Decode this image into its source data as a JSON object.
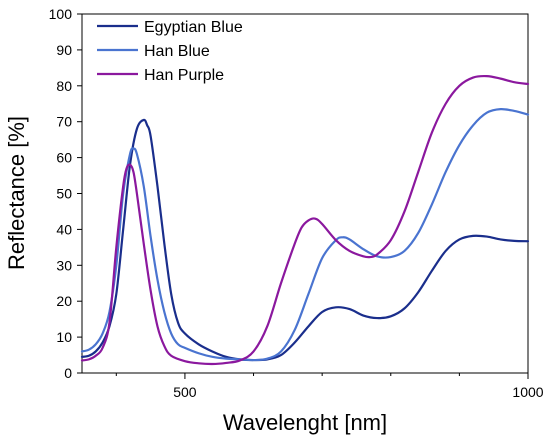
{
  "chart_data": {
    "type": "line",
    "title": "",
    "xlabel": "Wavelenght [nm]",
    "ylabel": "Reflectance [%]",
    "xlim": [
      350,
      1000
    ],
    "ylim": [
      0,
      100
    ],
    "x_ticks": [
      500,
      1000
    ],
    "x_minor_ticks": [
      400,
      600,
      700,
      800,
      900
    ],
    "y_ticks": [
      0,
      10,
      20,
      30,
      40,
      50,
      60,
      70,
      80,
      90,
      100
    ],
    "grid": false,
    "legend_position": "top-left",
    "series": [
      {
        "name": "Egyptian Blue",
        "color": "#1a2e8c",
        "points": [
          [
            350,
            4.5
          ],
          [
            360,
            4.8
          ],
          [
            370,
            6
          ],
          [
            380,
            8.5
          ],
          [
            390,
            13
          ],
          [
            400,
            22
          ],
          [
            410,
            40
          ],
          [
            420,
            58
          ],
          [
            430,
            68
          ],
          [
            440,
            70.5
          ],
          [
            445,
            69
          ],
          [
            450,
            66
          ],
          [
            460,
            52
          ],
          [
            470,
            36
          ],
          [
            480,
            22
          ],
          [
            490,
            14
          ],
          [
            500,
            11
          ],
          [
            520,
            8
          ],
          [
            540,
            6
          ],
          [
            560,
            4.5
          ],
          [
            580,
            3.8
          ],
          [
            600,
            3.6
          ],
          [
            620,
            3.8
          ],
          [
            640,
            5
          ],
          [
            660,
            8.5
          ],
          [
            680,
            13
          ],
          [
            700,
            17
          ],
          [
            720,
            18.3
          ],
          [
            740,
            17.8
          ],
          [
            760,
            16
          ],
          [
            780,
            15.3
          ],
          [
            800,
            15.8
          ],
          [
            820,
            18
          ],
          [
            840,
            22.5
          ],
          [
            860,
            28.5
          ],
          [
            880,
            34
          ],
          [
            900,
            37.2
          ],
          [
            920,
            38.2
          ],
          [
            940,
            38
          ],
          [
            960,
            37.2
          ],
          [
            980,
            36.8
          ],
          [
            1000,
            36.7
          ]
        ]
      },
      {
        "name": "Han Blue",
        "color": "#4a74d0",
        "points": [
          [
            350,
            6
          ],
          [
            360,
            6.5
          ],
          [
            370,
            8
          ],
          [
            380,
            11
          ],
          [
            390,
            17
          ],
          [
            400,
            30
          ],
          [
            410,
            50
          ],
          [
            420,
            61
          ],
          [
            425,
            62.5
          ],
          [
            430,
            61
          ],
          [
            440,
            52
          ],
          [
            450,
            38
          ],
          [
            460,
            26
          ],
          [
            470,
            17
          ],
          [
            480,
            11
          ],
          [
            490,
            8
          ],
          [
            500,
            7
          ],
          [
            520,
            5.5
          ],
          [
            540,
            4.5
          ],
          [
            560,
            4
          ],
          [
            580,
            3.8
          ],
          [
            600,
            3.6
          ],
          [
            620,
            4
          ],
          [
            640,
            6
          ],
          [
            660,
            12
          ],
          [
            680,
            22
          ],
          [
            700,
            32
          ],
          [
            720,
            37
          ],
          [
            730,
            37.8
          ],
          [
            740,
            37.2
          ],
          [
            760,
            34.5
          ],
          [
            780,
            32.5
          ],
          [
            800,
            32.3
          ],
          [
            820,
            34
          ],
          [
            840,
            39
          ],
          [
            860,
            47
          ],
          [
            880,
            56
          ],
          [
            900,
            63.5
          ],
          [
            920,
            69
          ],
          [
            940,
            72.5
          ],
          [
            960,
            73.5
          ],
          [
            980,
            73
          ],
          [
            1000,
            72
          ]
        ]
      },
      {
        "name": "Han Purple",
        "color": "#8b189e",
        "points": [
          [
            350,
            3.5
          ],
          [
            360,
            3.8
          ],
          [
            370,
            4.8
          ],
          [
            380,
            7
          ],
          [
            390,
            14
          ],
          [
            400,
            35
          ],
          [
            410,
            52
          ],
          [
            415,
            57
          ],
          [
            420,
            58
          ],
          [
            425,
            56
          ],
          [
            430,
            50
          ],
          [
            440,
            36
          ],
          [
            450,
            23
          ],
          [
            460,
            13
          ],
          [
            470,
            7.5
          ],
          [
            480,
            4.8
          ],
          [
            500,
            3.3
          ],
          [
            520,
            2.7
          ],
          [
            540,
            2.5
          ],
          [
            560,
            2.8
          ],
          [
            580,
            3.5
          ],
          [
            600,
            6
          ],
          [
            620,
            13
          ],
          [
            640,
            25
          ],
          [
            660,
            36
          ],
          [
            670,
            40.5
          ],
          [
            680,
            42.5
          ],
          [
            690,
            43
          ],
          [
            700,
            41.5
          ],
          [
            720,
            37
          ],
          [
            740,
            34
          ],
          [
            760,
            32.5
          ],
          [
            770,
            32.3
          ],
          [
            780,
            33
          ],
          [
            800,
            37
          ],
          [
            820,
            45
          ],
          [
            840,
            56
          ],
          [
            860,
            67
          ],
          [
            880,
            75
          ],
          [
            900,
            80
          ],
          [
            920,
            82.3
          ],
          [
            940,
            82.7
          ],
          [
            960,
            82
          ],
          [
            980,
            81
          ],
          [
            1000,
            80.5
          ]
        ]
      }
    ]
  }
}
